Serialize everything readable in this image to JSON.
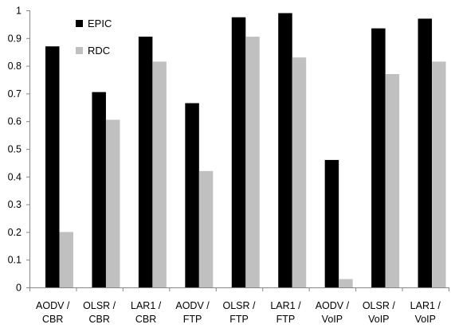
{
  "chart_data": {
    "type": "bar",
    "title": "",
    "xlabel": "",
    "ylabel": "",
    "ylim": [
      0,
      1
    ],
    "yticks": [
      "0",
      "0.1",
      "0.2",
      "0.3",
      "0.4",
      "0.5",
      "0.6",
      "0.7",
      "0.8",
      "0.9",
      "1"
    ],
    "categories": [
      [
        "AODV /",
        "CBR"
      ],
      [
        "OLSR /",
        "CBR"
      ],
      [
        "LAR1 /",
        "CBR"
      ],
      [
        "AODV /",
        "FTP"
      ],
      [
        "OLSR /",
        "FTP"
      ],
      [
        "LAR1 /",
        "FTP"
      ],
      [
        "AODV /",
        "VoIP"
      ],
      [
        "OLSR /",
        "VoIP"
      ],
      [
        "LAR1 /",
        "VoIP"
      ]
    ],
    "series": [
      {
        "name": "EPIC",
        "color": "#000000",
        "values": [
          0.87,
          0.705,
          0.905,
          0.665,
          0.975,
          0.99,
          0.46,
          0.935,
          0.97
        ]
      },
      {
        "name": "RDC",
        "color": "#c0c0c0",
        "values": [
          0.2,
          0.605,
          0.815,
          0.42,
          0.905,
          0.83,
          0.03,
          0.77,
          0.815
        ]
      }
    ],
    "legend_position": "top-left",
    "grid": false
  }
}
